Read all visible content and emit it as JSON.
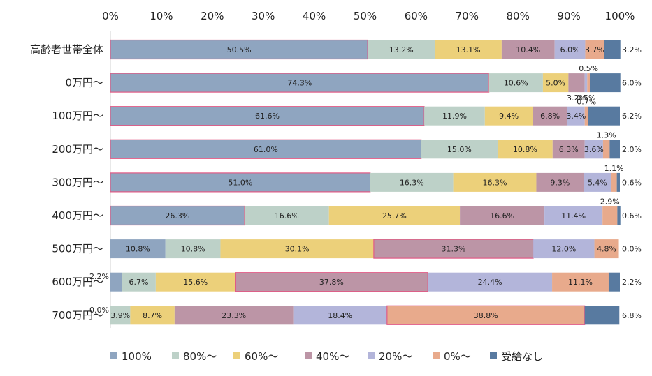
{
  "chart_data": {
    "type": "bar",
    "orientation": "horizontal",
    "stacked": "percent",
    "categories": [
      "高齢者世帯全体",
      "0万円～",
      "100万円～",
      "200万円～",
      "300万円～",
      "400万円～",
      "500万円～",
      "600万円～",
      "700万円～"
    ],
    "x_ticks": [
      "0%",
      "10%",
      "20%",
      "30%",
      "40%",
      "50%",
      "60%",
      "70%",
      "80%",
      "90%",
      "100%"
    ],
    "xlim": [
      0,
      100
    ],
    "legend_position": "bottom",
    "grid": false,
    "series": [
      {
        "name": "100%",
        "color": "#8fa5c0",
        "values": [
          50.5,
          74.3,
          61.6,
          61.0,
          51.0,
          26.3,
          10.8,
          2.2,
          0.0
        ],
        "labels": [
          "50.5%",
          "74.3%",
          "61.6%",
          "61.0%",
          "51.0%",
          "26.3%",
          "10.8%",
          "2.2%",
          "0.0%"
        ]
      },
      {
        "name": "80%～",
        "color": "#bdd1c8",
        "values": [
          13.2,
          10.6,
          11.9,
          15.0,
          16.3,
          16.6,
          10.8,
          6.7,
          3.9
        ],
        "labels": [
          "13.2%",
          "10.6%",
          "11.9%",
          "15.0%",
          "16.3%",
          "16.6%",
          "10.8%",
          "6.7%",
          "3.9%"
        ]
      },
      {
        "name": "60%～",
        "color": "#ecd07a",
        "values": [
          13.1,
          5.0,
          9.4,
          10.8,
          16.3,
          25.7,
          30.1,
          15.6,
          8.7
        ],
        "labels": [
          "13.1%",
          "5.0%",
          "9.4%",
          "10.8%",
          "16.3%",
          "25.7%",
          "30.1%",
          "15.6%",
          "8.7%"
        ]
      },
      {
        "name": "40%～",
        "color": "#bc95a6",
        "values": [
          10.4,
          3.2,
          6.8,
          6.3,
          9.3,
          16.6,
          31.3,
          37.8,
          23.3
        ],
        "labels": [
          "10.4%",
          "3.2%",
          "6.8%",
          "6.3%",
          "9.3%",
          "16.6%",
          "31.3%",
          "37.8%",
          "23.3%"
        ]
      },
      {
        "name": "20%～",
        "color": "#b3b5da",
        "values": [
          6.0,
          0.5,
          3.4,
          3.6,
          5.4,
          11.4,
          12.0,
          24.4,
          18.4
        ],
        "labels": [
          "6.0%",
          "0.5%",
          "3.4%",
          "3.6%",
          "5.4%",
          "11.4%",
          "12.0%",
          "24.4%",
          "18.4%"
        ]
      },
      {
        "name": "0%～",
        "color": "#e8aa8c",
        "values": [
          3.7,
          0.5,
          0.7,
          1.3,
          1.1,
          2.9,
          4.8,
          11.1,
          38.8
        ],
        "labels": [
          "3.7%",
          "0.5%",
          "0.7%",
          "1.3%",
          "1.1%",
          "2.9%",
          "4.8%",
          "11.1%",
          "38.8%"
        ]
      },
      {
        "name": "受給なし",
        "color": "#587aa0",
        "values": [
          3.2,
          6.0,
          6.2,
          2.0,
          0.6,
          0.6,
          0.0,
          2.2,
          6.8
        ],
        "labels": [
          "3.2%",
          "6.0%",
          "6.2%",
          "2.0%",
          "0.6%",
          "0.6%",
          "0.0%",
          "2.2%",
          "6.8%"
        ]
      }
    ],
    "highlight_color": "#e05a85"
  }
}
